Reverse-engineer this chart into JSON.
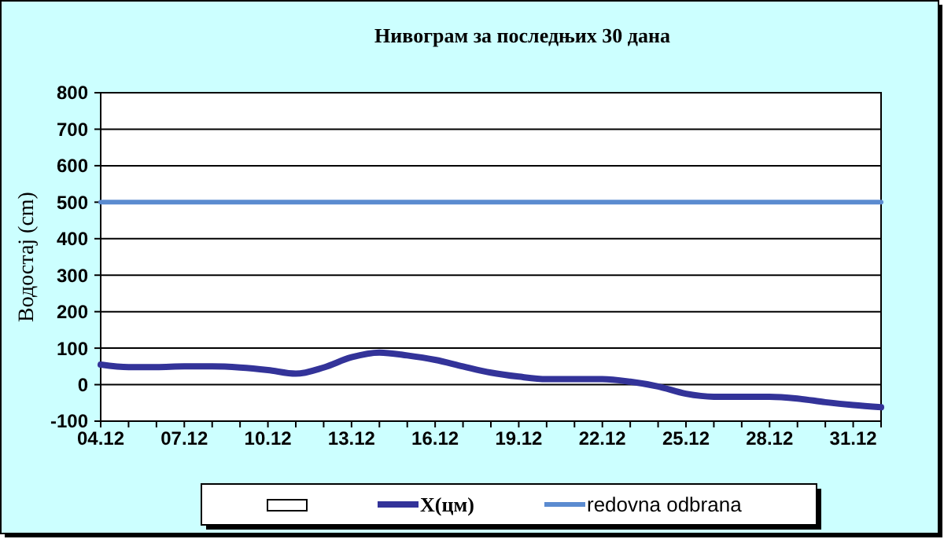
{
  "chart_data": {
    "type": "line",
    "title": "Нивограм за последњих 30 дана",
    "ylabel": "Водостај (cm)",
    "categories": [
      "04.12",
      null,
      null,
      "07.12",
      null,
      null,
      "10.12",
      null,
      null,
      "13.12",
      null,
      null,
      "16.12",
      null,
      null,
      "19.12",
      null,
      null,
      "22.12",
      null,
      null,
      "25.12",
      null,
      null,
      "28.12",
      null,
      null,
      "31.12",
      null
    ],
    "series": [
      {
        "name": "X(цм)",
        "color": "#333399",
        "values": [
          55,
          48,
          48,
          50,
          50,
          47,
          40,
          30,
          47,
          75,
          88,
          80,
          68,
          50,
          33,
          22,
          15,
          15,
          15,
          8,
          -5,
          -25,
          -33,
          -33,
          -33,
          -38,
          -48,
          -56,
          -62
        ]
      },
      {
        "name": "redovna odbrana",
        "color": "#5b8bd0",
        "values": [
          500,
          500,
          500,
          500,
          500,
          500,
          500,
          500,
          500,
          500,
          500,
          500,
          500,
          500,
          500,
          500,
          500,
          500,
          500,
          500,
          500,
          500,
          500,
          500,
          500,
          500,
          500,
          500,
          500
        ]
      }
    ],
    "ylim": [
      -100,
      800
    ],
    "yticks": [
      -100,
      0,
      100,
      200,
      300,
      400,
      500,
      600,
      700,
      800
    ],
    "grid": "y",
    "legend": "bottom",
    "marker": "none"
  }
}
